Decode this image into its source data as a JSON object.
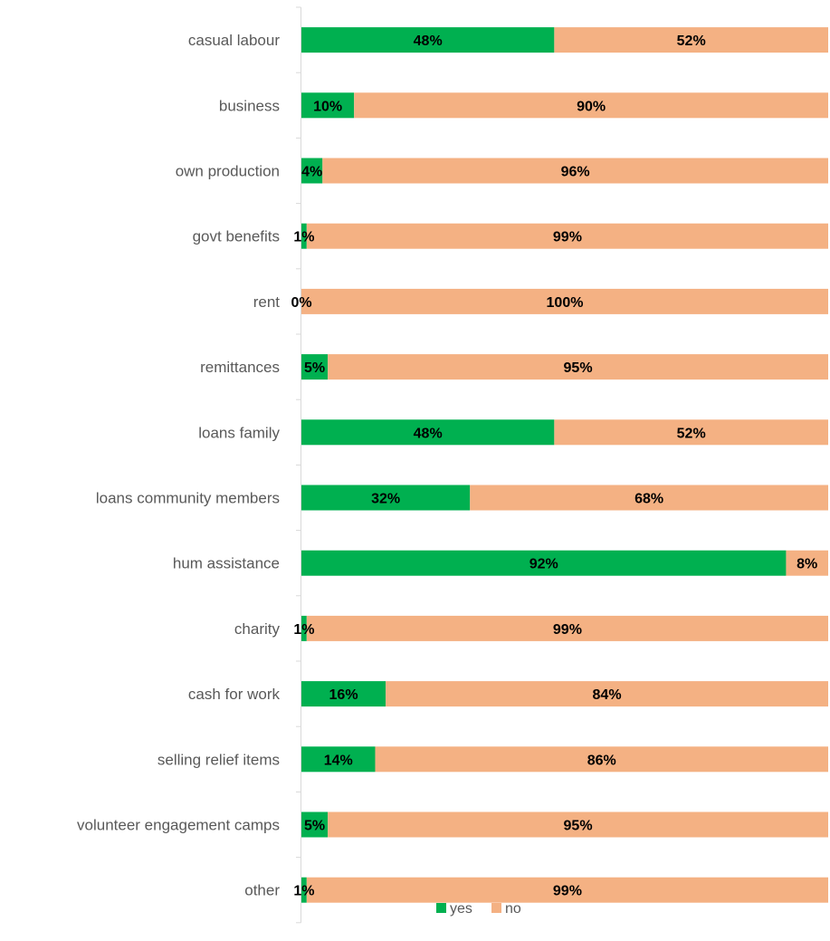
{
  "chart_data": {
    "type": "bar",
    "orientation": "horizontal",
    "stacked": "percent",
    "categories": [
      "casual labour",
      "business",
      "own production",
      "govt benefits",
      "rent",
      "remittances",
      "loans family",
      "loans community members",
      "hum assistance",
      "charity",
      "cash for work",
      "selling relief items",
      "volunteer engagement camps",
      "other"
    ],
    "series": [
      {
        "name": "yes",
        "color": "#00B050",
        "values": [
          48,
          10,
          4,
          1,
          0,
          5,
          48,
          32,
          92,
          1,
          16,
          14,
          5,
          1
        ]
      },
      {
        "name": "no",
        "color": "#F4B183",
        "values": [
          52,
          90,
          96,
          99,
          100,
          95,
          52,
          68,
          8,
          99,
          84,
          86,
          95,
          99
        ]
      }
    ],
    "value_format": "percent",
    "xlim": [
      0,
      100
    ],
    "legend_position": "bottom",
    "grid": false
  }
}
